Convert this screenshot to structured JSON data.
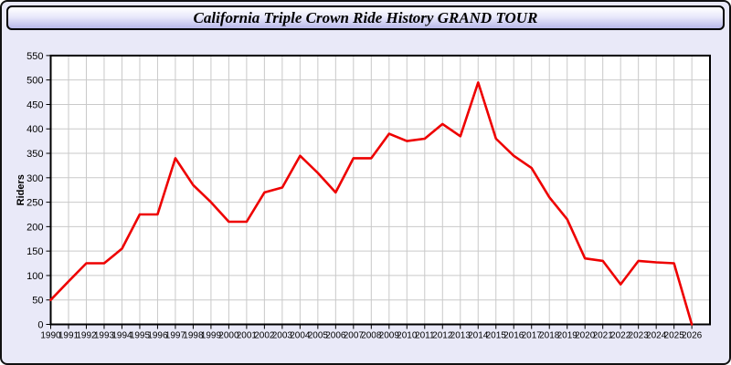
{
  "window": {
    "title": "California Triple Crown Ride History GRAND TOUR"
  },
  "chart_data": {
    "type": "line",
    "title": "California Triple Crown Ride History GRAND TOUR",
    "xlabel": "",
    "ylabel": "Riders",
    "x": [
      1990,
      1991,
      1992,
      1993,
      1994,
      1995,
      1996,
      1997,
      1998,
      1999,
      2000,
      2001,
      2002,
      2003,
      2004,
      2005,
      2006,
      2007,
      2008,
      2009,
      2010,
      2011,
      2012,
      2013,
      2014,
      2015,
      2016,
      2017,
      2018,
      2019,
      2020,
      2021,
      2022,
      2023,
      2024,
      2025,
      2026
    ],
    "series": [
      {
        "name": "Riders",
        "color": "#ee0000",
        "values": [
          50,
          88,
          125,
          125,
          155,
          225,
          225,
          340,
          285,
          250,
          210,
          210,
          270,
          280,
          345,
          310,
          270,
          340,
          340,
          390,
          375,
          380,
          410,
          385,
          495,
          380,
          345,
          320,
          260,
          215,
          135,
          130,
          82,
          130,
          127,
          125,
          0
        ]
      }
    ],
    "ylim": [
      0,
      550
    ],
    "ytick_step": 50,
    "grid": true,
    "legend_position": "none"
  },
  "colors": {
    "line_red": "#ee0000",
    "page_background": "#e9e9f8",
    "plot_background": "#ffffff",
    "gridline": "#c9c9c9",
    "axis": "#000000",
    "titlebar_gradient_top": "#ffffff",
    "titlebar_gradient_bottom": "#b9b9ea"
  }
}
